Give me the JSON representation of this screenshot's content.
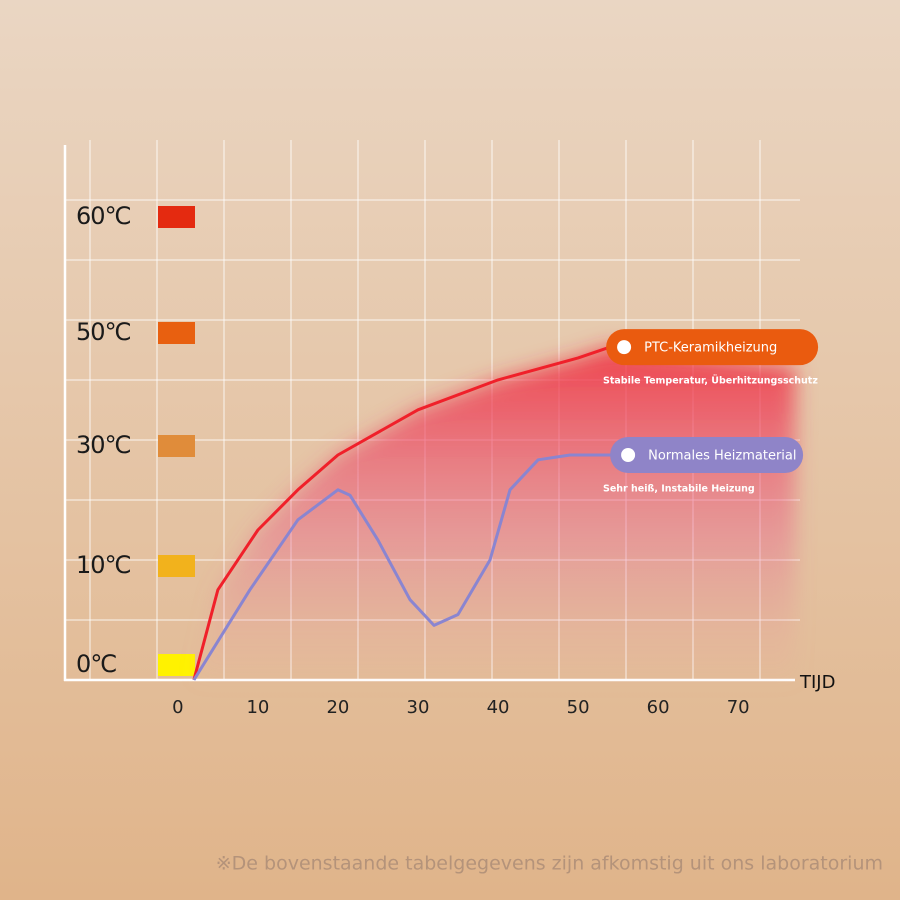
{
  "chart_data": {
    "type": "line",
    "x_label": "TIJD",
    "xlim": [
      -14.1,
      77.1
    ],
    "xticks": [
      0,
      10,
      20,
      30,
      40,
      50,
      60,
      70
    ],
    "ylim": [
      -1.5,
      66
    ],
    "yticks": [
      {
        "value": 0,
        "label": "0℃"
      },
      {
        "value": 10,
        "label": "10℃"
      },
      {
        "value": 30,
        "label": "30℃"
      },
      {
        "value": 50,
        "label": "50℃"
      },
      {
        "value": 60,
        "label": "60℃"
      }
    ],
    "ytick_colors": [
      "#fff200",
      "#f2b21c",
      "#e08c3a",
      "#e86010",
      "#e42a10"
    ],
    "series": [
      {
        "name": "PTC-Keramikheizung",
        "description": "Stabile Temperatur, Überhitzungsschutz",
        "color": "#f0202a",
        "badge_color": "#ea5b0f",
        "x": [
          2,
          5,
          10,
          15,
          20,
          30,
          40,
          50,
          54
        ],
        "values": [
          -1.5,
          7.6,
          16,
          22.7,
          28.5,
          36.4,
          41.7,
          45.6,
          47.5
        ]
      },
      {
        "name": "Normales Heizmaterial",
        "description": "Sehr heiß, Instabile Heizung",
        "color": "#8a85d0",
        "badge_color": "#8f84c8",
        "x": [
          2,
          9,
          15,
          20,
          21.5,
          25,
          29,
          32,
          35,
          39,
          41.5,
          45,
          49,
          54.5
        ],
        "values": [
          -1.5,
          7.6,
          17.7,
          22.7,
          21.8,
          14.3,
          6.6,
          4,
          5.1,
          11,
          22.7,
          27.7,
          28.5,
          28.5
        ]
      }
    ],
    "footnote": "※De bovenstaande tabelgegevens zijn afkomstig uit ons laboratorium"
  }
}
